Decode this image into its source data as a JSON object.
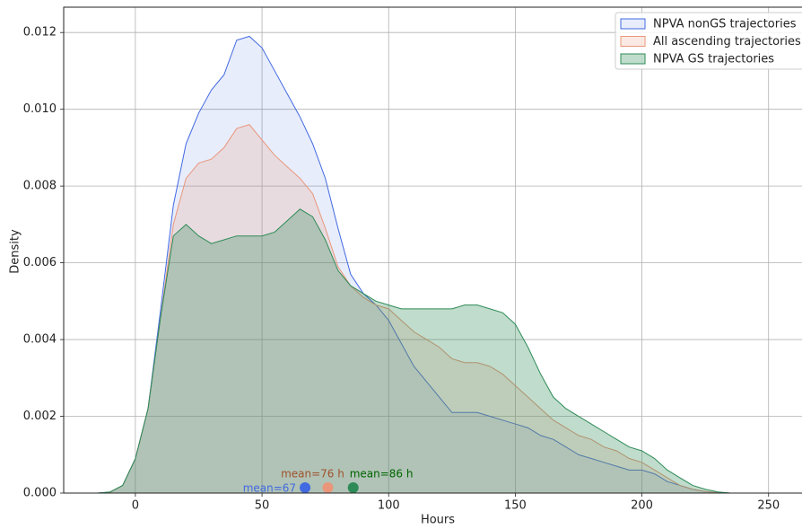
{
  "chart_data": {
    "type": "area",
    "x_label": "Hours",
    "y_label": "Density",
    "x": [
      -15,
      -10,
      -5,
      0,
      5,
      10,
      15,
      20,
      25,
      30,
      35,
      40,
      45,
      50,
      55,
      60,
      65,
      70,
      75,
      80,
      85,
      90,
      95,
      100,
      105,
      110,
      115,
      120,
      125,
      130,
      135,
      140,
      145,
      150,
      155,
      160,
      165,
      170,
      175,
      180,
      185,
      190,
      195,
      200,
      205,
      210,
      215,
      220,
      225,
      230,
      235
    ],
    "series": [
      {
        "name": "NPVA nonGS trajectories",
        "color": "#4169e1",
        "fill_opacity": 0.12,
        "values": [
          0,
          2e-05,
          0.0002,
          0.0009,
          0.0022,
          0.0048,
          0.0075,
          0.0091,
          0.0099,
          0.0105,
          0.0109,
          0.0118,
          0.0119,
          0.0116,
          0.011,
          0.0104,
          0.0098,
          0.0091,
          0.0082,
          0.0069,
          0.0057,
          0.0052,
          0.0049,
          0.0045,
          0.0039,
          0.0033,
          0.0029,
          0.0025,
          0.0021,
          0.0021,
          0.0021,
          0.002,
          0.0019,
          0.0018,
          0.0017,
          0.0015,
          0.0014,
          0.0012,
          0.001,
          0.0009,
          0.0008,
          0.0007,
          0.0006,
          0.0006,
          0.0005,
          0.0003,
          0.0002,
          0.0001,
          4e-05,
          1e-05,
          0
        ]
      },
      {
        "name": "All ascending trajectories",
        "color": "#e9967a",
        "fill_opacity": 0.2,
        "values": [
          0,
          2e-05,
          0.0002,
          0.0009,
          0.0022,
          0.0046,
          0.007,
          0.0082,
          0.0086,
          0.0087,
          0.009,
          0.0095,
          0.0096,
          0.0092,
          0.0088,
          0.0085,
          0.0082,
          0.0078,
          0.0069,
          0.0059,
          0.0054,
          0.0051,
          0.0049,
          0.0048,
          0.0045,
          0.0042,
          0.004,
          0.0038,
          0.0035,
          0.0034,
          0.0034,
          0.0033,
          0.0031,
          0.0028,
          0.0025,
          0.0022,
          0.0019,
          0.0017,
          0.0015,
          0.0014,
          0.0012,
          0.0011,
          0.0009,
          0.0008,
          0.0006,
          0.0004,
          0.0002,
          0.0001,
          4e-05,
          1e-05,
          0
        ]
      },
      {
        "name": "NPVA GS trajectories",
        "color": "#2e8b57",
        "fill_opacity": 0.3,
        "values": [
          0,
          3e-05,
          0.0002,
          0.0009,
          0.0022,
          0.0046,
          0.0067,
          0.007,
          0.0067,
          0.0065,
          0.0066,
          0.0067,
          0.0067,
          0.0067,
          0.0068,
          0.0071,
          0.0074,
          0.0072,
          0.0066,
          0.0058,
          0.0054,
          0.0052,
          0.005,
          0.0049,
          0.0048,
          0.0048,
          0.0048,
          0.0048,
          0.0048,
          0.0049,
          0.0049,
          0.0048,
          0.0047,
          0.0044,
          0.0038,
          0.0031,
          0.0025,
          0.0022,
          0.002,
          0.0018,
          0.0016,
          0.0014,
          0.0012,
          0.0011,
          0.0009,
          0.0006,
          0.0004,
          0.0002,
          0.0001,
          3e-05,
          0
        ]
      }
    ],
    "means": [
      {
        "label": "mean=67",
        "x": 67,
        "y": 0.00014,
        "color": "#4169e1",
        "label_color": "#4169e1"
      },
      {
        "label": "mean=76 h",
        "x": 76,
        "y": 0.00014,
        "color": "#e9967a",
        "label_color": "#a0522d"
      },
      {
        "label": "mean=86 h",
        "x": 86,
        "y": 0.00014,
        "color": "#2e8b57",
        "label_color": "#006400"
      }
    ],
    "xlim": [
      -28.3,
      263.2
    ],
    "ylim": [
      0,
      0.01266
    ],
    "xticks": [
      0,
      50,
      100,
      150,
      200,
      250
    ],
    "yticks": [
      {
        "value": 0,
        "label": "0.000"
      },
      {
        "value": 0.002,
        "label": "0.002"
      },
      {
        "value": 0.004,
        "label": "0.004"
      },
      {
        "value": 0.006,
        "label": "0.006"
      },
      {
        "value": 0.008,
        "label": "0.008"
      },
      {
        "value": 0.01,
        "label": "0.010"
      },
      {
        "value": 0.012,
        "label": "0.012"
      }
    ],
    "grid": true,
    "legend": "upper right"
  }
}
